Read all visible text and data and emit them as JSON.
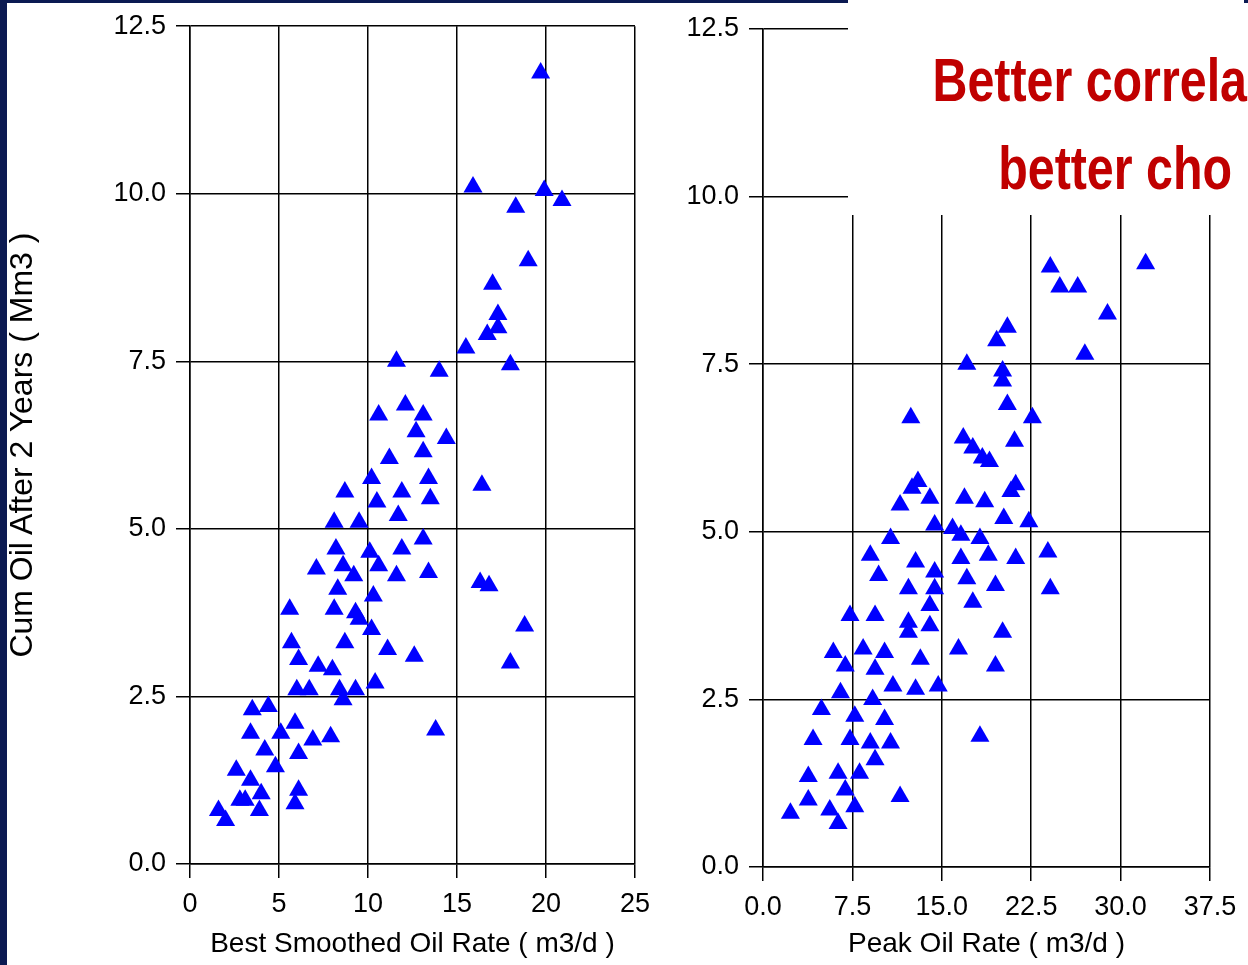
{
  "chart_data": [
    {
      "type": "scatter",
      "xlabel": "Best Smoothed Oil Rate ( m3/d )",
      "ylabel": "Cum Oil After 2 Years ( Mm3 )",
      "marker": "triangle",
      "grid": true,
      "xlim": [
        0,
        25
      ],
      "xticks": [
        0,
        5,
        10,
        15,
        20,
        25
      ],
      "ylim": [
        0,
        12.5
      ],
      "yticks": [
        {
          "value": 0,
          "label": "0.0"
        },
        2.5,
        {
          "value": 5,
          "label": "5.0"
        },
        7.5,
        {
          "value": 10,
          "label": "10.0"
        },
        12.5
      ],
      "series": [
        {
          "color": "#0000ff",
          "x": [
            19.7,
            15.9,
            19.9,
            18.3,
            20.9,
            19.0,
            17.0,
            17.3,
            17.3,
            16.7,
            15.5,
            18.0,
            11.6,
            14.0,
            10.6,
            12.1,
            13.1,
            12.7,
            14.4,
            13.1,
            11.2,
            13.4,
            16.4,
            8.7,
            10.2,
            11.9,
            13.5,
            10.5,
            11.7,
            8.1,
            9.5,
            13.1,
            11.9,
            8.2,
            10.1,
            8.6,
            10.6,
            7.1,
            11.6,
            13.4,
            9.2,
            8.3,
            16.3,
            16.8,
            10.3,
            5.6,
            8.1,
            9.3,
            9.5,
            10.2,
            8.7,
            5.7,
            11.1,
            12.6,
            18.8,
            18.0,
            6.1,
            7.2,
            8.0,
            6.7,
            6.0,
            8.4,
            9.3,
            10.4,
            8.6,
            13.8,
            4.4,
            3.5,
            5.9,
            3.4,
            5.1,
            6.9,
            7.9,
            4.2,
            6.1,
            2.6,
            4.8,
            3.4,
            6.1,
            4.0,
            2.8,
            1.6,
            3.9,
            5.9,
            2.0,
            3.1
          ],
          "values": [
            11.8,
            10.1,
            10.05,
            9.8,
            9.9,
            9.0,
            8.65,
            8.2,
            8.0,
            7.9,
            7.7,
            7.45,
            7.5,
            7.35,
            6.7,
            6.85,
            6.7,
            6.45,
            6.35,
            6.15,
            6.05,
            5.75,
            5.65,
            5.55,
            5.75,
            5.55,
            5.45,
            5.4,
            5.2,
            5.1,
            5.1,
            4.85,
            4.7,
            4.7,
            4.65,
            4.45,
            4.45,
            4.4,
            4.3,
            4.35,
            4.3,
            4.1,
            4.2,
            4.15,
            4.0,
            3.8,
            3.8,
            3.75,
            3.65,
            3.5,
            3.3,
            3.3,
            3.2,
            3.1,
            3.55,
            3.0,
            3.05,
            2.95,
            2.9,
            2.6,
            2.6,
            2.6,
            2.6,
            2.7,
            2.45,
            2.0,
            2.35,
            2.3,
            2.1,
            1.95,
            1.95,
            1.85,
            1.9,
            1.7,
            1.65,
            1.4,
            1.45,
            1.25,
            1.1,
            1.05,
            0.95,
            0.8,
            0.8,
            0.9,
            0.65,
            0.95
          ]
        }
      ]
    },
    {
      "type": "scatter",
      "xlabel": "Peak Oil Rate ( m3/d )",
      "marker": "triangle",
      "grid": true,
      "xlim": [
        0,
        37.5
      ],
      "xticks": [
        {
          "value": 0,
          "label": "0.0"
        },
        7.5,
        {
          "value": 15,
          "label": "15.0"
        },
        22.5,
        {
          "value": 30,
          "label": "30.0"
        },
        37.5
      ],
      "ylim": [
        0,
        12.5
      ],
      "yticks": [
        {
          "value": 0,
          "label": "0.0"
        },
        2.5,
        {
          "value": 5,
          "label": "5.0"
        },
        7.5,
        {
          "value": 10,
          "label": "10.0"
        },
        12.5
      ],
      "annotations": [
        "Better correla",
        "better cho"
      ],
      "series": [
        {
          "color": "#0000ff",
          "x": [
            32.1,
            24.1,
            24.9,
            26.4,
            28.9,
            27.0,
            20.5,
            19.6,
            17.1,
            20.1,
            20.1,
            12.4,
            20.5,
            22.6,
            16.8,
            21.1,
            17.6,
            18.4,
            19.0,
            12.5,
            13.0,
            21.2,
            20.8,
            11.5,
            14.0,
            16.9,
            18.6,
            20.2,
            22.3,
            14.4,
            15.9,
            16.6,
            18.2,
            10.7,
            9.0,
            23.9,
            18.9,
            16.6,
            21.2,
            12.8,
            14.4,
            9.7,
            17.1,
            12.2,
            14.4,
            19.5,
            24.1,
            17.6,
            14.0,
            7.3,
            9.4,
            12.2,
            14.0,
            20.1,
            12.2,
            5.9,
            8.4,
            10.2,
            16.4,
            13.2,
            19.5,
            6.9,
            9.4,
            10.9,
            12.8,
            14.7,
            6.5,
            9.2,
            4.9,
            7.7,
            10.2,
            4.2,
            7.3,
            9.0,
            10.7,
            18.2,
            9.4,
            3.8,
            6.3,
            8.1,
            6.9,
            11.5,
            2.3,
            5.6,
            7.7,
            6.3,
            3.8
          ],
          "values": [
            9.0,
            8.95,
            8.65,
            8.65,
            8.25,
            7.65,
            8.05,
            7.85,
            7.5,
            7.4,
            7.25,
            6.7,
            6.9,
            6.7,
            6.4,
            6.35,
            6.25,
            6.1,
            6.05,
            5.65,
            5.75,
            5.7,
            5.6,
            5.4,
            5.5,
            5.5,
            5.45,
            5.2,
            5.15,
            5.1,
            5.05,
            4.95,
            4.9,
            4.9,
            4.65,
            4.7,
            4.65,
            4.6,
            4.6,
            4.55,
            4.4,
            4.35,
            4.3,
            4.15,
            4.15,
            4.2,
            4.15,
            3.95,
            3.9,
            3.75,
            3.75,
            3.65,
            3.6,
            3.5,
            3.5,
            3.2,
            3.25,
            3.2,
            3.25,
            3.1,
            3.0,
            3.0,
            2.95,
            2.7,
            2.65,
            2.7,
            2.6,
            2.5,
            2.35,
            2.25,
            2.2,
            1.9,
            1.9,
            1.85,
            1.85,
            1.95,
            1.6,
            1.35,
            1.4,
            1.4,
            1.15,
            1.05,
            0.8,
            0.85,
            0.9,
            0.65,
            1.0
          ]
        }
      ]
    }
  ]
}
